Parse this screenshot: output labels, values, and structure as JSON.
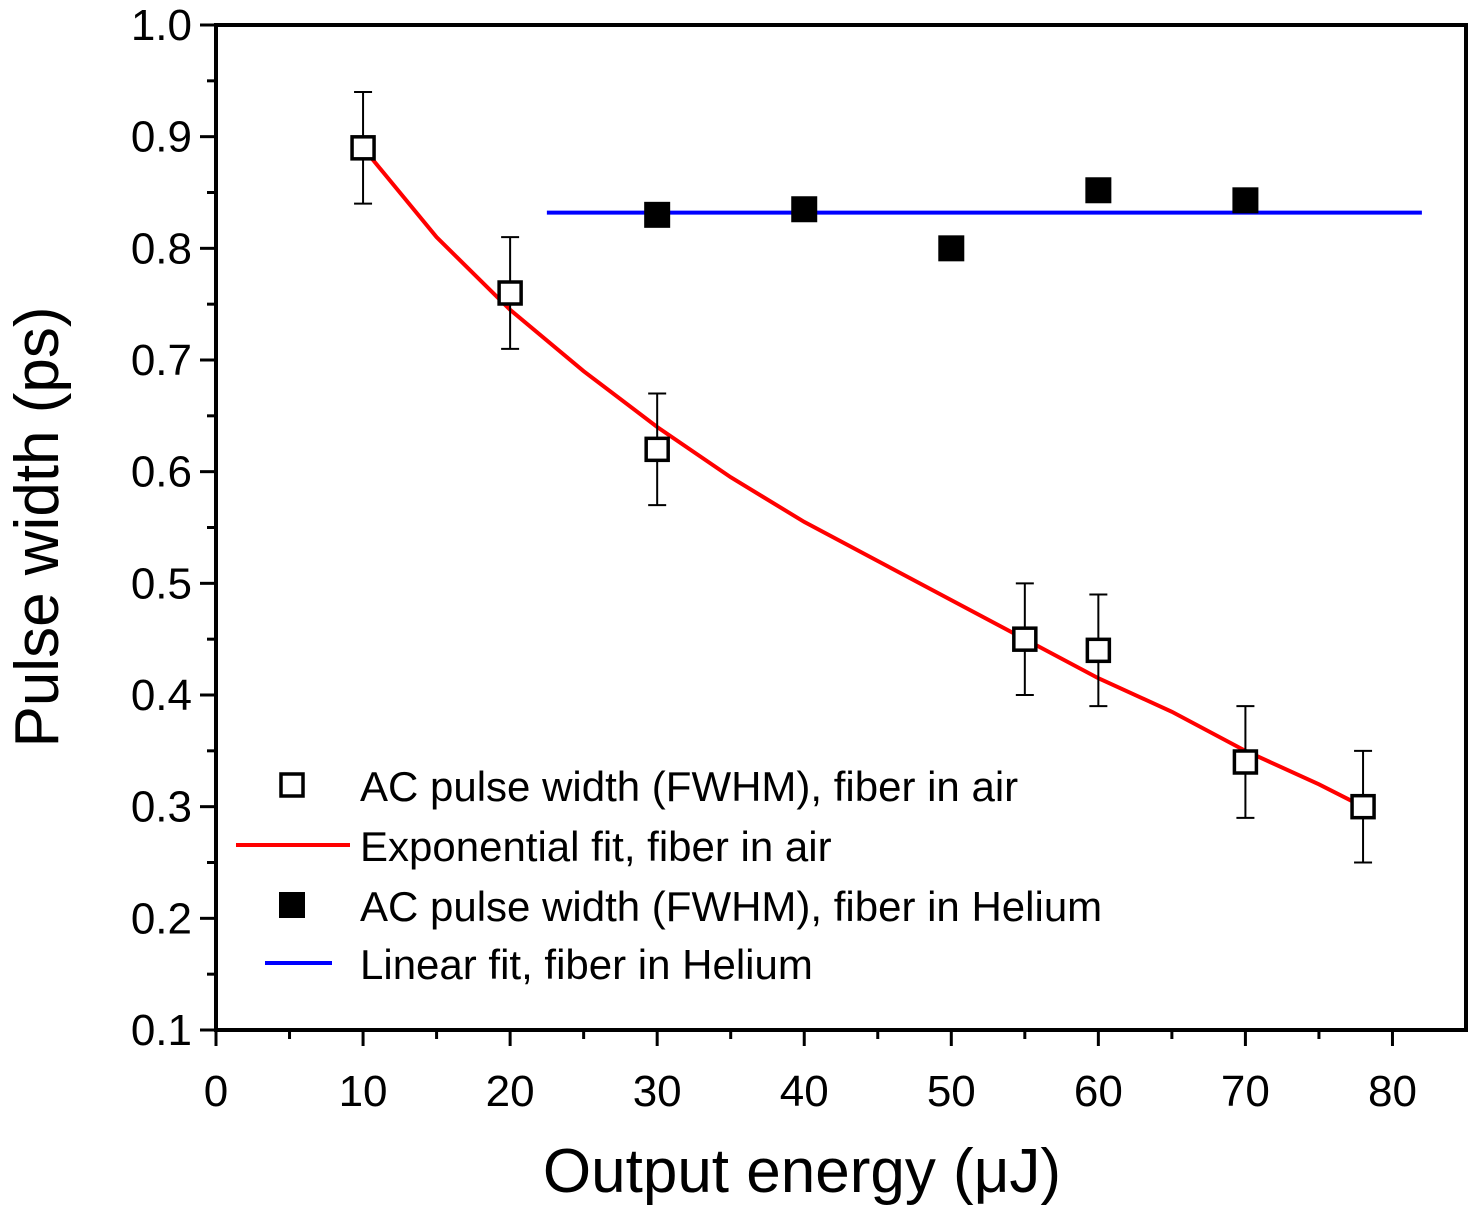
{
  "chart_data": {
    "type": "scatter",
    "title": "",
    "xlabel": "Output energy (μJ)",
    "ylabel": "Pulse width (ps)",
    "xlim": [
      0,
      85
    ],
    "ylim": [
      0.1,
      1.0
    ],
    "xticks": [
      "0",
      "10",
      "20",
      "30",
      "40",
      "50",
      "60",
      "70",
      "80"
    ],
    "yticks": [
      "0.1",
      "0.2",
      "0.3",
      "0.4",
      "0.5",
      "0.6",
      "0.7",
      "0.8",
      "0.9",
      "1.0"
    ],
    "grid": false,
    "legend_position": "bottom-left",
    "series": [
      {
        "name": "AC pulse width (FWHM), fiber in air",
        "marker": "open-square",
        "color": "#000000",
        "x": [
          10,
          20,
          30,
          55,
          60,
          70,
          78
        ],
        "y": [
          0.89,
          0.76,
          0.62,
          0.45,
          0.44,
          0.34,
          0.3
        ],
        "yerr": [
          0.05,
          0.05,
          0.05,
          0.05,
          0.05,
          0.05,
          0.05
        ]
      },
      {
        "name": "Exponential fit, fiber in air",
        "line": true,
        "color": "#ff0000",
        "x": [
          10,
          15,
          20,
          25,
          30,
          35,
          40,
          45,
          50,
          55,
          60,
          65,
          70,
          75,
          78
        ],
        "y": [
          0.89,
          0.81,
          0.745,
          0.69,
          0.64,
          0.595,
          0.555,
          0.52,
          0.485,
          0.45,
          0.415,
          0.385,
          0.35,
          0.32,
          0.3
        ]
      },
      {
        "name": "AC pulse width (FWHM), fiber in Helium",
        "marker": "filled-square",
        "color": "#000000",
        "x": [
          30,
          40,
          50,
          60,
          70
        ],
        "y": [
          0.83,
          0.835,
          0.8,
          0.852,
          0.843
        ]
      },
      {
        "name": "Linear fit, fiber in Helium",
        "line": true,
        "color": "#0000ff",
        "x": [
          22.5,
          82
        ],
        "y": [
          0.832,
          0.832
        ]
      }
    ]
  }
}
